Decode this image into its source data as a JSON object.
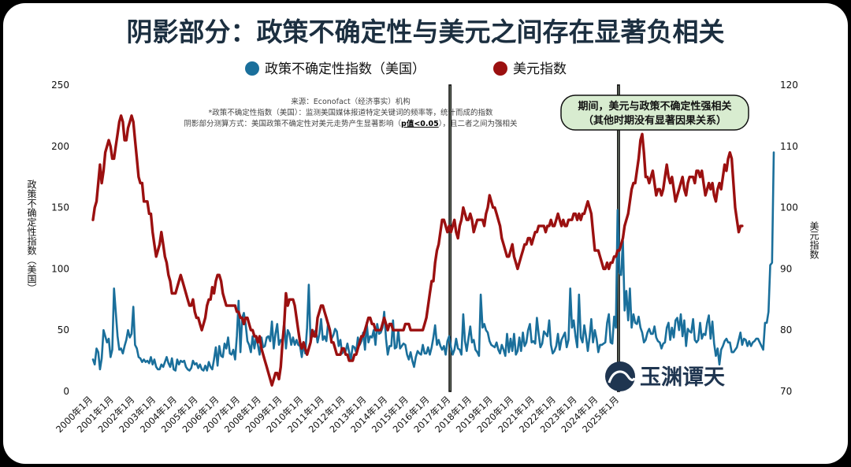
{
  "title": "阴影部分：政策不确定性与美元之间存在显著负相关",
  "legend": [
    {
      "label": "政策不确定性指数（美国）",
      "color": "#1a6f9b"
    },
    {
      "label": "美元指数",
      "color": "#9b1010"
    }
  ],
  "source_lines": [
    "来源：Econofact（经济事实）机构",
    "*政策不确定性指数（美国）：监测美国媒体报道特定关键词的频率等，统计而成的指数"
  ],
  "method_line": {
    "prefix": "阴影部分测算方式：美国政策不确定性对美元走势产生显著影响（",
    "bold": "p值<0.05",
    "suffix": "），且二者之间为强相关"
  },
  "annotation": {
    "line1": "期间，美元与政策不确定性强相关",
    "line2": "（其他时期没有显著因果关系）",
    "fill": "#d8ecd0"
  },
  "watermark": "玉渊谭天",
  "chart_data": {
    "type": "line",
    "x_start": "2000年1月",
    "x_end": "2025年7月",
    "xticks": [
      "2000年1月",
      "2001年1月",
      "2002年1月",
      "2003年1月",
      "2004年1月",
      "2005年1月",
      "2006年1月",
      "2007年1月",
      "2008年1月",
      "2009年1月",
      "2010年1月",
      "2011年1月",
      "2012年1月",
      "2013年1月",
      "2014年1月",
      "2015年1月",
      "2016年1月",
      "2017年1月",
      "2018年1月",
      "2019年1月",
      "2020年1月",
      "2021年1月",
      "2022年1月",
      "2023年1月",
      "2024年1月",
      "2025年1月"
    ],
    "ylabel_left": "政策不确定性指数（美国）",
    "ylabel_right": "美元指数",
    "ylim_left": [
      0,
      250
    ],
    "yticks_left": [
      0,
      50,
      100,
      150,
      200,
      250
    ],
    "ylim_right": [
      70,
      120
    ],
    "yticks_right": [
      70,
      80,
      90,
      100,
      110,
      120
    ],
    "shaded_periods": [
      [
        "2016年12月",
        "2017年1月"
      ],
      [
        "2024年12月",
        "2025年1月"
      ]
    ],
    "series": [
      {
        "name": "政策不确定性指数（美国）",
        "axis": "left",
        "color": "#1a6f9b",
        "values": [
          26,
          22,
          35,
          32,
          18,
          27,
          50,
          45,
          40,
          43,
          28,
          34,
          84,
          65,
          45,
          34,
          35,
          31,
          37,
          42,
          50,
          44,
          47,
          69,
          38,
          35,
          28,
          27,
          24,
          26,
          24,
          25,
          23,
          28,
          22,
          26,
          20,
          18,
          18,
          22,
          20,
          24,
          28,
          23,
          20,
          27,
          18,
          17,
          26,
          22,
          25,
          24,
          25,
          20,
          18,
          17,
          19,
          25,
          22,
          23,
          19,
          22,
          18,
          17,
          21,
          17,
          24,
          20,
          18,
          26,
          36,
          21,
          37,
          29,
          28,
          39,
          35,
          44,
          31,
          30,
          34,
          26,
          45,
          74,
          32,
          60,
          64,
          55,
          41,
          38,
          32,
          45,
          35,
          45,
          38,
          30,
          44,
          36,
          37,
          44,
          45,
          41,
          57,
          35,
          47,
          55,
          38,
          42,
          40,
          57,
          35,
          50,
          47,
          38,
          44,
          38,
          42,
          38,
          37,
          28,
          39,
          31,
          52,
          87,
          41,
          46,
          48,
          50,
          40,
          47,
          59,
          42,
          45,
          41,
          56,
          51,
          43,
          46,
          51,
          49,
          37,
          42,
          31,
          34,
          33,
          39,
          32,
          26,
          37,
          36,
          32,
          44,
          38,
          41,
          48,
          34,
          56,
          40,
          45,
          44,
          50,
          38,
          55,
          47,
          48,
          52,
          65,
          43,
          30,
          37,
          37,
          58,
          35,
          36,
          50,
          35,
          37,
          39,
          38,
          30,
          26,
          32,
          25,
          20,
          28,
          33,
          31,
          30,
          38,
          31,
          31,
          36,
          30,
          36,
          44,
          54,
          38,
          42,
          37,
          34,
          37,
          30,
          41,
          45,
          36,
          30,
          34,
          43,
          35,
          34,
          30,
          63,
          41,
          33,
          43,
          53,
          40,
          42,
          34,
          32,
          29,
          79,
          52,
          55,
          50,
          48,
          41,
          38,
          37,
          36,
          40,
          34,
          31,
          38,
          34,
          29,
          47,
          32,
          43,
          33,
          47,
          30,
          33,
          44,
          33,
          48,
          37,
          40,
          50,
          55,
          40,
          41,
          39,
          60,
          47,
          36,
          39,
          49,
          47,
          45,
          58,
          38,
          31,
          33,
          37,
          47,
          34,
          42,
          45,
          48,
          36,
          42,
          84,
          52,
          58,
          45,
          36,
          79,
          44,
          40,
          54,
          45,
          33,
          44,
          59,
          40,
          50,
          43,
          32,
          38,
          38,
          39,
          40,
          56,
          63,
          40,
          39,
          61,
          52,
          148,
          97,
          95,
          123,
          66,
          82,
          58,
          84,
          52,
          63,
          56,
          55,
          61,
          52,
          48,
          40,
          42,
          48,
          51,
          47,
          47,
          53,
          44,
          41,
          40,
          35,
          39,
          40,
          52,
          56,
          42,
          52,
          44,
          58,
          60,
          50,
          63,
          45,
          58,
          37,
          51,
          49,
          48,
          59,
          42,
          40,
          42,
          56,
          43,
          47,
          46,
          56,
          62,
          43,
          57,
          39,
          29,
          35,
          22,
          34,
          37,
          41,
          43,
          40,
          40,
          32,
          32,
          34,
          36,
          42,
          48,
          38,
          43,
          42,
          37,
          41,
          37,
          40,
          41,
          43,
          43,
          40,
          37,
          34,
          56,
          56,
          65,
          103,
          105,
          195
        ]
      },
      {
        "name": "美元指数",
        "axis": "right",
        "color": "#9b1010",
        "values": [
          98,
          100,
          101,
          104,
          107,
          104,
          106,
          109,
          110,
          111,
          110,
          108,
          108,
          110,
          112,
          114,
          115,
          114,
          111,
          111,
          113,
          114,
          115,
          114,
          111,
          108,
          105,
          104,
          104,
          101,
          101,
          101,
          99,
          99,
          96,
          94,
          92,
          93,
          94,
          96,
          94,
          92,
          91,
          89,
          88,
          86,
          86,
          86,
          87,
          88,
          89,
          88,
          87,
          86,
          85,
          84,
          84,
          85,
          83,
          82,
          82,
          81,
          80,
          81,
          82,
          84,
          85,
          85,
          87,
          86,
          88,
          89,
          89,
          88,
          86,
          85,
          84,
          84,
          84,
          84,
          84,
          84,
          83,
          83,
          82,
          82,
          81,
          82,
          82,
          81,
          80,
          80,
          79,
          79,
          78,
          79,
          77,
          76,
          75,
          74,
          73,
          72,
          71,
          72,
          73,
          73,
          72,
          74,
          78,
          81,
          86,
          84,
          85,
          85,
          85,
          84,
          82,
          80,
          78,
          77,
          78,
          77,
          76,
          77,
          78,
          80,
          79,
          79,
          82,
          83,
          84,
          84,
          83,
          82,
          81,
          80,
          78,
          78,
          77,
          76,
          76,
          76,
          77,
          77,
          76,
          76,
          75,
          75,
          75,
          76,
          76,
          77,
          78,
          79,
          79,
          80,
          81,
          82,
          82,
          81,
          81,
          80,
          80,
          80,
          80,
          81,
          82,
          81,
          80,
          81,
          81,
          80,
          80,
          80,
          80,
          80,
          80,
          80,
          81,
          81,
          81,
          80,
          80,
          80,
          80,
          80,
          80,
          80,
          80,
          81,
          82,
          84,
          86,
          88,
          88,
          91,
          93,
          94,
          96,
          98,
          98,
          97,
          96,
          97,
          96,
          97,
          98,
          96,
          95,
          97,
          98,
          100,
          99,
          98,
          98,
          99,
          98,
          96,
          97,
          98,
          98,
          98,
          98,
          97,
          99,
          100,
          102,
          101,
          100,
          100,
          99,
          98,
          97,
          95,
          94,
          93,
          92,
          92,
          93,
          94,
          92,
          91,
          90,
          91,
          92,
          93,
          94,
          94,
          95,
          95,
          94,
          95,
          96,
          96,
          97,
          97,
          97,
          97,
          96,
          97,
          97,
          98,
          97,
          97,
          98,
          99,
          98,
          97,
          98,
          97,
          97,
          98,
          98,
          98,
          99,
          99,
          98,
          99,
          98,
          99,
          99,
          100,
          101,
          100,
          99,
          96,
          93,
          93,
          93,
          92,
          91,
          90,
          90,
          91,
          90,
          91,
          91,
          92,
          92,
          93,
          93,
          94,
          95,
          97,
          98,
          99,
          101,
          103,
          104,
          104,
          106,
          108,
          111,
          112,
          109,
          105,
          105,
          104,
          105,
          106,
          104,
          102,
          103,
          103,
          102,
          103,
          105,
          107,
          105,
          104,
          105,
          103,
          101,
          102,
          103,
          104,
          105,
          103,
          102,
          104,
          105,
          105,
          105,
          104,
          106,
          106,
          105,
          106,
          104,
          102,
          103,
          104,
          103,
          104,
          102,
          101,
          103,
          104,
          103,
          105,
          107,
          106,
          108,
          109,
          108,
          104,
          100,
          98,
          96,
          97,
          97
        ]
      }
    ]
  }
}
